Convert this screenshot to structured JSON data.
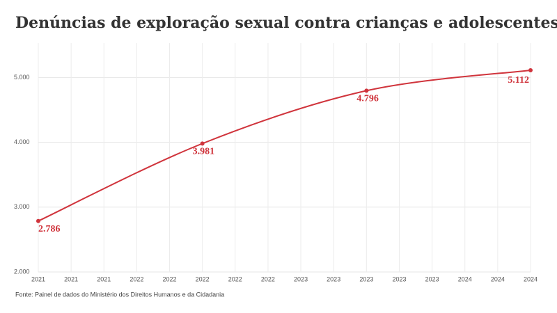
{
  "chart_data": {
    "type": "line",
    "title": "Denúncias de exploração sexual contra crianças e adolescentes",
    "source": "Fonte: Painel de dados do Ministério dos Direitos Humanos e da Cidadania",
    "x": [
      2021,
      2022,
      2023,
      2024
    ],
    "series": [
      {
        "name": "Denúncias",
        "color": "#d0343c",
        "values": [
          2786,
          3981,
          4796,
          5112
        ],
        "value_labels": [
          "2.786",
          "3.981",
          "4.796",
          "5.112"
        ]
      }
    ],
    "xlim": [
      2021,
      2024
    ],
    "xticks": [
      {
        "value": 2021,
        "label": "2021"
      },
      {
        "value": 2021.2,
        "label": "2021"
      },
      {
        "value": 2021.4,
        "label": "2021"
      },
      {
        "value": 2021.6,
        "label": "2022"
      },
      {
        "value": 2021.8,
        "label": "2022"
      },
      {
        "value": 2022,
        "label": "2022"
      },
      {
        "value": 2022.2,
        "label": "2022"
      },
      {
        "value": 2022.4,
        "label": "2022"
      },
      {
        "value": 2022.6,
        "label": "2023"
      },
      {
        "value": 2022.8,
        "label": "2023"
      },
      {
        "value": 2023,
        "label": "2023"
      },
      {
        "value": 2023.2,
        "label": "2023"
      },
      {
        "value": 2023.4,
        "label": "2023"
      },
      {
        "value": 2023.6,
        "label": "2024"
      },
      {
        "value": 2023.8,
        "label": "2024"
      },
      {
        "value": 2024,
        "label": "2024"
      }
    ],
    "ylim": [
      2000,
      5530
    ],
    "yticks": [
      {
        "value": 2000,
        "label": "2.000"
      },
      {
        "value": 3000,
        "label": "3.000"
      },
      {
        "value": 4000,
        "label": "4.000"
      },
      {
        "value": 5000,
        "label": "5.000"
      }
    ],
    "grid": true
  }
}
